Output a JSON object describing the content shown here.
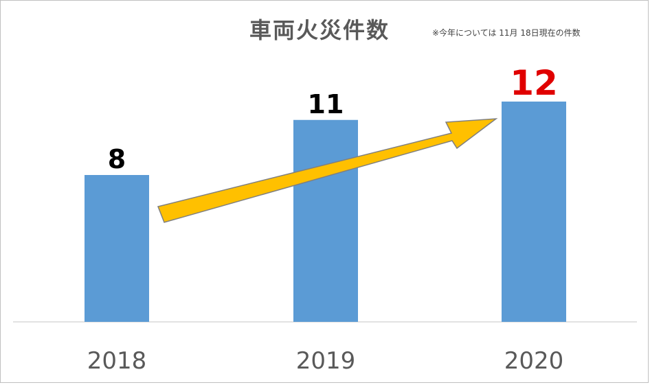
{
  "chart_data": {
    "type": "bar",
    "title": "車両火災件数",
    "note": "※今年については 11月 18日現在の件数",
    "categories": [
      "2018",
      "2019",
      "2020"
    ],
    "values": [
      8,
      11,
      12
    ],
    "value_label_colors": [
      "#000000",
      "#000000",
      "#e00000"
    ],
    "bar_color": "#5b9bd5",
    "arrow_color": "#ffc000",
    "grid": false,
    "legend": "none",
    "xlabel": "",
    "ylabel": ""
  }
}
